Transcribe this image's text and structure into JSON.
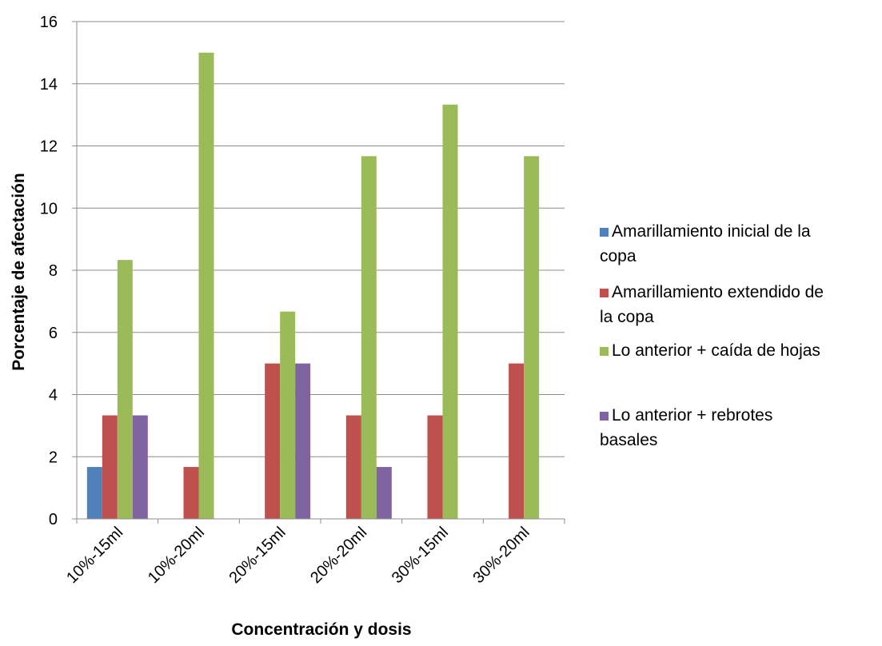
{
  "chart_data": {
    "type": "bar",
    "title": "",
    "xlabel": "Concentración y dosis",
    "ylabel": "Porcentaje de afectación",
    "ylim": [
      0,
      16
    ],
    "yticks": [
      0,
      2,
      4,
      6,
      8,
      10,
      12,
      14,
      16
    ],
    "grid": true,
    "legend_position": "right",
    "categories": [
      "10%-15ml",
      "10%-20ml",
      "20%-15ml",
      "20%-20ml",
      "30%-15ml",
      "30%-20ml"
    ],
    "series": [
      {
        "name": "Amarillamiento inicial de la copa",
        "legend_lines": [
          "Amarillamiento inicial de la",
          "copa"
        ],
        "color": "#4F81BD",
        "values": [
          1.67,
          0,
          0,
          0,
          0,
          0
        ]
      },
      {
        "name": "Amarillamiento extendido de la copa",
        "legend_lines": [
          "Amarillamiento extendido de",
          "la copa"
        ],
        "color": "#C0504D",
        "values": [
          3.33,
          1.67,
          5,
          3.33,
          3.33,
          5
        ]
      },
      {
        "name": "Lo anterior + caída de hojas",
        "legend_lines": [
          "Lo anterior + caída de hojas"
        ],
        "color": "#9BBB59",
        "values": [
          8.33,
          15,
          6.67,
          11.67,
          13.33,
          11.67
        ]
      },
      {
        "name": "Lo anterior + rebrotes basales",
        "legend_lines": [
          "Lo anterior + rebrotes",
          "basales"
        ],
        "color": "#8064A2",
        "values": [
          3.33,
          0,
          5,
          1.67,
          0,
          0
        ]
      }
    ]
  }
}
